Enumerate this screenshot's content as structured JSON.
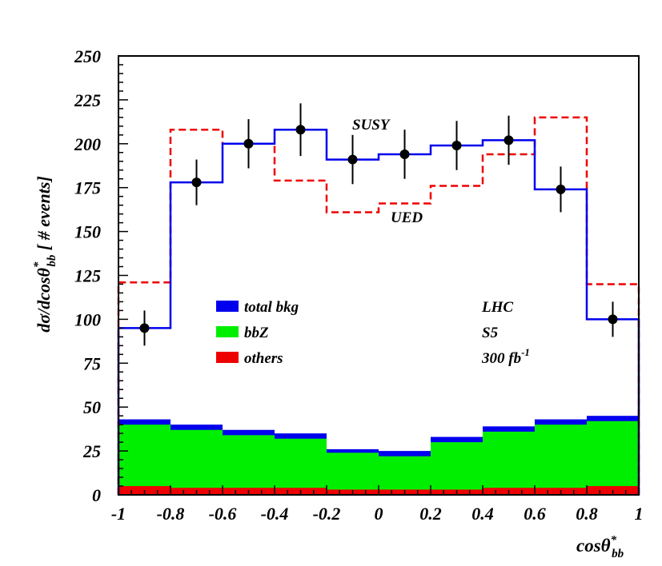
{
  "chart_data": {
    "type": "histogram",
    "xlim": [
      -1,
      1
    ],
    "ylim": [
      0,
      250
    ],
    "bin_edges": [
      -1,
      -0.8,
      -0.6,
      -0.4,
      -0.2,
      0,
      0.2,
      0.4,
      0.6,
      0.8,
      1
    ],
    "x_ticks": [
      "-1",
      "-0.8",
      "-0.6",
      "-0.4",
      "-0.2",
      "0",
      "0.2",
      "0.4",
      "0.6",
      "0.8",
      "1"
    ],
    "y_ticks": [
      "0",
      "25",
      "50",
      "75",
      "100",
      "125",
      "150",
      "175",
      "200",
      "225",
      "250"
    ],
    "xlabel": {
      "main": "cosθ",
      "sup": "*",
      "sub": "bb"
    },
    "ylabel": {
      "main": "dσ/dcosθ",
      "sup": "*",
      "sub": "bb",
      "tail": " [ # events]"
    },
    "series": [
      {
        "name": "SUSY",
        "style": "solid-step",
        "color": "#0000ee",
        "values": [
          95,
          178,
          200,
          208,
          191,
          194,
          199,
          202,
          174,
          100
        ]
      },
      {
        "name": "UED",
        "style": "dashed-step",
        "color": "#ee0000",
        "values": [
          121,
          208,
          200,
          179,
          161,
          166,
          176,
          194,
          215,
          120
        ]
      },
      {
        "name": "total bkg",
        "style": "filled",
        "color": "#0000ee",
        "values": [
          43,
          40,
          37,
          35,
          26,
          25,
          33,
          39,
          43,
          45
        ]
      },
      {
        "name": "bbZ",
        "style": "filled",
        "color": "#00ee00",
        "values": [
          40,
          37,
          34,
          32,
          24,
          22,
          30,
          36,
          40,
          42
        ]
      },
      {
        "name": "others",
        "style": "filled",
        "color": "#ee0000",
        "values": [
          5,
          4,
          4,
          4,
          3,
          3,
          3,
          4,
          4,
          5
        ]
      }
    ],
    "data_points": {
      "x": [
        -0.9,
        -0.7,
        -0.5,
        -0.3,
        -0.1,
        0.1,
        0.3,
        0.5,
        0.7,
        0.9
      ],
      "y": [
        95,
        178,
        200,
        208,
        191,
        194,
        199,
        202,
        174,
        100
      ],
      "err": [
        10,
        13,
        14,
        15,
        14,
        14,
        14,
        14,
        13,
        10
      ]
    },
    "legend": {
      "placement": "center-left",
      "entries": [
        {
          "label": "total bkg",
          "color": "#0000ee"
        },
        {
          "label": "bbZ",
          "color": "#00ee00"
        },
        {
          "label": "others",
          "color": "#ee0000"
        }
      ]
    },
    "annotations": {
      "susy": "SUSY",
      "ued": "UED",
      "collider": "LHC",
      "point": "S5",
      "lumi_main": "300 fb",
      "lumi_sup": "-1"
    }
  }
}
